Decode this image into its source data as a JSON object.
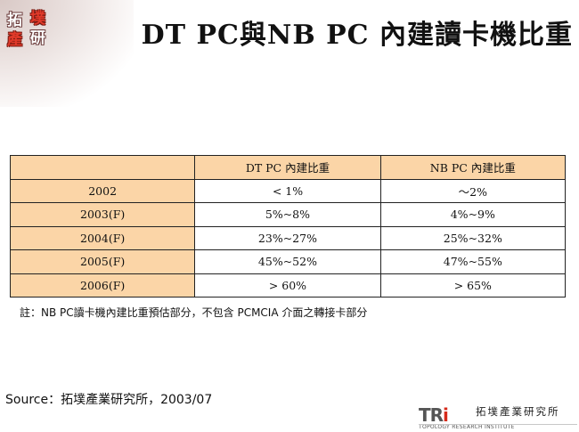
{
  "header": {
    "logo_chars": [
      "拓",
      "墣",
      "產",
      "研"
    ],
    "title": "DT PC與NB PC 內建讀卡機比重"
  },
  "table": {
    "columns": [
      "",
      "DT PC 內建比重",
      "NB PC 內建比重"
    ],
    "rows": [
      {
        "label": "2002",
        "dt": "< 1%",
        "nb": "～2%"
      },
      {
        "label": "2003(F)",
        "dt": "5%~8%",
        "nb": "4%~9%"
      },
      {
        "label": "2004(F)",
        "dt": "23%~27%",
        "nb": "25%~32%"
      },
      {
        "label": "2005(F)",
        "dt": "45%~52%",
        "nb": "47%~55%"
      },
      {
        "label": "2006(F)",
        "dt": "> 60%",
        "nb": "> 65%"
      }
    ]
  },
  "note": "註：NB PC讀卡機內建比重預估部分，不包含 PCMCIA 介面之轉接卡部分",
  "source": "Source：拓墣產業研究所，2003/07",
  "footer_logo": {
    "mark_tr": "TR",
    "mark_i": "i",
    "chinese": "拓墣產業研究所",
    "english": "TOPOLOGY RESEARCH INSTITUTE"
  },
  "colors": {
    "header_fill": "#fbd5a7",
    "accent_red": "#e23a2a"
  }
}
